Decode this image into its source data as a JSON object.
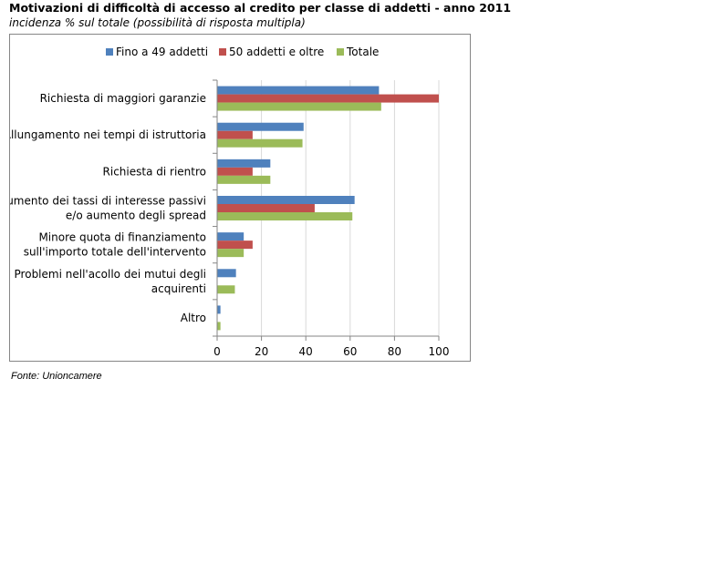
{
  "title": "Motivazioni di difficoltà di accesso al credito per classe di addetti - anno 2011",
  "subtitle": "incidenza % sul totale (possibilità di risposta multipla)",
  "source": "Fonte: Unioncamere",
  "chart_data": {
    "type": "bar",
    "orientation": "horizontal",
    "categories": [
      [
        "Richiesta di maggiori garanzie"
      ],
      [
        "Allungamento nei tempi di istruttoria"
      ],
      [
        "Richiesta di rientro"
      ],
      [
        "Aumento dei tassi di interesse passivi",
        "e/o aumento degli spread"
      ],
      [
        "Minore quota di finanziamento",
        "sull'importo totale dell'intervento"
      ],
      [
        "Problemi nell'acollo dei mutui degli",
        "acquirenti"
      ],
      [
        "Altro"
      ]
    ],
    "series": [
      {
        "name": "Fino a 49 addetti",
        "color": "#4f81bd",
        "values": [
          73,
          39,
          24,
          62,
          12,
          8.5,
          1.5
        ]
      },
      {
        "name": "50 addetti e oltre",
        "color": "#c0504d",
        "values": [
          100,
          16,
          16,
          44,
          16,
          0,
          0
        ]
      },
      {
        "name": "Totale",
        "color": "#9bbb59",
        "values": [
          74,
          38.5,
          24,
          61,
          12,
          8,
          1.5
        ]
      }
    ],
    "xlim": [
      0,
      100
    ],
    "xticks": [
      0,
      20,
      40,
      60,
      80,
      100
    ],
    "grid": true,
    "legend_position": "top"
  }
}
